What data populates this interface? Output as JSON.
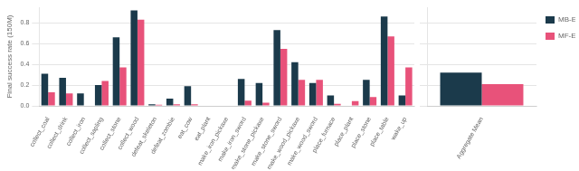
{
  "chart_data": [
    {
      "type": "bar",
      "categories": [
        "collect_coal",
        "collect_drink",
        "collect_iron",
        "collect_sapling",
        "collect_stone",
        "collect_wood",
        "defeat_skeleton",
        "defeat_zombie",
        "eat_cow",
        "eat_plant",
        "make_iron_pickaxe",
        "make_iron_sword",
        "make_stone_pickaxe",
        "make_stone_sword",
        "make_wood_pickaxe",
        "make_wood_sword",
        "place_furnace",
        "place_plant",
        "place_stone",
        "place_table",
        "wake_up"
      ],
      "series": [
        {
          "color": "#1b3a4b",
          "values": [
            0.31,
            0.27,
            0.12,
            0.2,
            0.66,
            0.92,
            0.015,
            0.07,
            0.19,
            0.0,
            0.0,
            0.26,
            0.22,
            0.73,
            0.42,
            0.22,
            0.1,
            0.005,
            0.25,
            0.86,
            0.1
          ]
        },
        {
          "color": "#e8527a",
          "values": [
            0.13,
            0.12,
            0.0,
            0.24,
            0.37,
            0.83,
            0.01,
            0.015,
            0.015,
            0.0,
            0.0,
            0.05,
            0.03,
            0.55,
            0.25,
            0.25,
            0.02,
            0.045,
            0.085,
            0.67,
            0.37
          ]
        }
      ],
      "ylabel": "Final success rate (150M)",
      "ylim": [
        0,
        0.95
      ],
      "yticks": [
        {
          "value": 0,
          "label": "0.0"
        },
        0.2,
        0.4,
        0.6,
        0.8
      ],
      "grid": true
    },
    {
      "type": "bar",
      "categories": [
        "Aggregate Mean"
      ],
      "series": [
        {
          "name": "MB-Explore",
          "color": "#1b3a4b",
          "values": [
            0.32
          ]
        },
        {
          "name": "MF-Explore",
          "color": "#e8527a",
          "values": [
            0.21
          ]
        }
      ],
      "ylim": [
        0,
        0.95
      ],
      "yticks": [
        0.0,
        0.2,
        0.4,
        0.6,
        0.8
      ],
      "grid": true,
      "legend": "upper right",
      "tick_labels": "x"
    }
  ]
}
